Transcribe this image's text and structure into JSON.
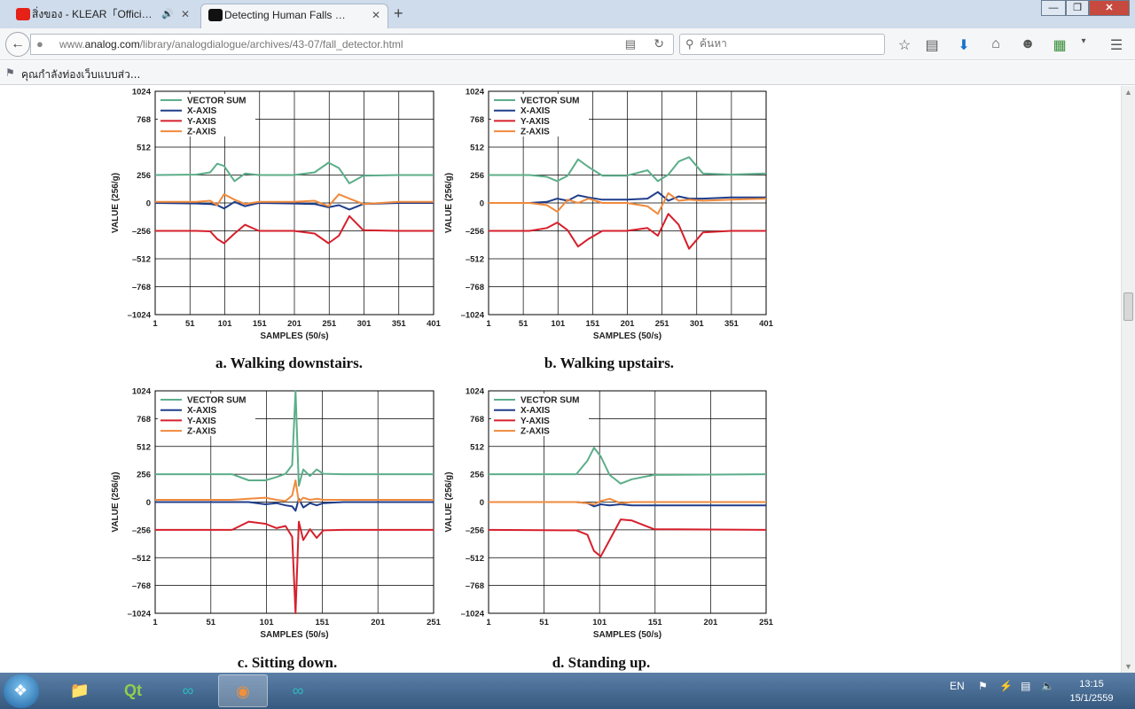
{
  "browser": {
    "tabs": [
      {
        "label": "สิ่งของ - KLEAR「Official...",
        "active": false,
        "favicon": "youtube-icon"
      },
      {
        "label": "Detecting Human Falls wit...",
        "active": true,
        "favicon": "play-icon"
      }
    ],
    "url_domain": "www.analog.com",
    "url_path": "/library/analogdialogue/archives/43-07/fall_detector.html",
    "url_prefix": "www.",
    "url_host": "analog.com",
    "search_placeholder": "ค้นหา",
    "bookmark_label": "คุณกำลังท่องเว็บแบบส่ว..."
  },
  "figure_common": {
    "legend": [
      "VECTOR SUM",
      "X-AXIS",
      "Y-AXIS",
      "Z-AXIS"
    ],
    "xlabel": "SAMPLES (50/s)",
    "ylabel": "VALUE (256/g)",
    "yticks": [
      "1024",
      "768",
      "512",
      "256",
      "0",
      "–256",
      "–512",
      "–768",
      "–1024"
    ],
    "colors": {
      "vector_sum": "#5cae8a",
      "x_axis": "#1f3d8a",
      "y_axis": "#d6202c",
      "z_axis": "#f08a3c"
    }
  },
  "chart_data": [
    {
      "type": "line",
      "caption": "a. Walking downstairs.",
      "xlabel": "SAMPLES (50/s)",
      "ylabel": "VALUE (256/g)",
      "xticks": [
        "1",
        "51",
        "101",
        "151",
        "201",
        "251",
        "301",
        "351",
        "401"
      ],
      "xlim": [
        1,
        401
      ],
      "ylim": [
        -1024,
        1024
      ],
      "grid": true,
      "legend_position": "top-left",
      "series": [
        {
          "name": "VECTOR SUM",
          "x": [
            1,
            60,
            80,
            90,
            100,
            115,
            130,
            150,
            200,
            230,
            250,
            265,
            280,
            300,
            350,
            401
          ],
          "y": [
            256,
            260,
            280,
            360,
            340,
            200,
            270,
            256,
            256,
            280,
            370,
            320,
            180,
            250,
            256,
            256
          ]
        },
        {
          "name": "X-AXIS",
          "x": [
            1,
            60,
            80,
            90,
            100,
            115,
            130,
            150,
            200,
            230,
            250,
            265,
            280,
            300,
            350,
            401
          ],
          "y": [
            0,
            -5,
            -10,
            -20,
            -50,
            10,
            -30,
            0,
            -5,
            -10,
            -40,
            -20,
            -60,
            -10,
            0,
            0
          ]
        },
        {
          "name": "Y-AXIS",
          "x": [
            1,
            60,
            80,
            90,
            100,
            115,
            130,
            150,
            200,
            230,
            250,
            265,
            280,
            300,
            350,
            401
          ],
          "y": [
            -256,
            -256,
            -260,
            -330,
            -370,
            -280,
            -200,
            -256,
            -256,
            -280,
            -370,
            -300,
            -120,
            -250,
            -256,
            -256
          ]
        },
        {
          "name": "Z-AXIS",
          "x": [
            1,
            60,
            80,
            90,
            100,
            115,
            130,
            150,
            200,
            230,
            250,
            265,
            280,
            300,
            350,
            401
          ],
          "y": [
            10,
            10,
            20,
            -20,
            80,
            30,
            -10,
            10,
            10,
            20,
            -30,
            80,
            40,
            -10,
            10,
            10
          ]
        }
      ]
    },
    {
      "type": "line",
      "caption": "b. Walking upstairs.",
      "xlabel": "SAMPLES (50/s)",
      "ylabel": "VALUE (256/g)",
      "xticks": [
        "1",
        "51",
        "101",
        "151",
        "201",
        "251",
        "301",
        "351",
        "401"
      ],
      "xlim": [
        1,
        401
      ],
      "ylim": [
        -1024,
        1024
      ],
      "grid": true,
      "legend_position": "top-left",
      "series": [
        {
          "name": "VECTOR SUM",
          "x": [
            1,
            60,
            85,
            100,
            115,
            130,
            145,
            165,
            200,
            230,
            245,
            260,
            275,
            290,
            310,
            350,
            401
          ],
          "y": [
            256,
            256,
            240,
            200,
            250,
            400,
            330,
            250,
            250,
            300,
            200,
            260,
            380,
            420,
            270,
            260,
            270
          ]
        },
        {
          "name": "X-AXIS",
          "x": [
            1,
            60,
            85,
            100,
            115,
            130,
            145,
            165,
            200,
            230,
            245,
            260,
            275,
            290,
            310,
            350,
            401
          ],
          "y": [
            0,
            0,
            10,
            40,
            20,
            70,
            50,
            30,
            30,
            40,
            100,
            20,
            60,
            40,
            40,
            50,
            50
          ]
        },
        {
          "name": "Y-AXIS",
          "x": [
            1,
            60,
            85,
            100,
            115,
            130,
            145,
            165,
            200,
            230,
            245,
            260,
            275,
            290,
            310,
            350,
            401
          ],
          "y": [
            -256,
            -256,
            -230,
            -180,
            -250,
            -400,
            -330,
            -256,
            -256,
            -230,
            -300,
            -100,
            -200,
            -420,
            -270,
            -256,
            -256
          ]
        },
        {
          "name": "Z-AXIS",
          "x": [
            1,
            60,
            85,
            100,
            115,
            130,
            145,
            165,
            200,
            230,
            245,
            260,
            275,
            290,
            310,
            350,
            401
          ],
          "y": [
            0,
            0,
            -20,
            -80,
            30,
            0,
            40,
            0,
            0,
            -30,
            -100,
            90,
            20,
            30,
            20,
            30,
            40
          ]
        }
      ]
    },
    {
      "type": "line",
      "caption": "c. Sitting down.",
      "xlabel": "SAMPLES (50/s)",
      "ylabel": "VALUE (256/g)",
      "xticks": [
        "1",
        "51",
        "101",
        "151",
        "201",
        "251"
      ],
      "xlim": [
        1,
        251
      ],
      "ylim": [
        -1024,
        1024
      ],
      "grid": true,
      "legend_position": "top-left",
      "series": [
        {
          "name": "VECTOR SUM",
          "x": [
            1,
            70,
            85,
            100,
            110,
            118,
            124,
            127,
            130,
            134,
            140,
            146,
            152,
            170,
            251
          ],
          "y": [
            256,
            256,
            200,
            200,
            230,
            260,
            340,
            1024,
            150,
            300,
            240,
            300,
            260,
            256,
            256
          ]
        },
        {
          "name": "X-AXIS",
          "x": [
            1,
            70,
            85,
            100,
            110,
            118,
            124,
            127,
            130,
            134,
            140,
            146,
            152,
            170,
            251
          ],
          "y": [
            0,
            0,
            0,
            -20,
            -10,
            -30,
            -40,
            -80,
            30,
            -50,
            -10,
            -30,
            -10,
            0,
            0
          ]
        },
        {
          "name": "Y-AXIS",
          "x": [
            1,
            70,
            85,
            100,
            110,
            118,
            124,
            127,
            130,
            134,
            140,
            146,
            152,
            170,
            251
          ],
          "y": [
            -256,
            -256,
            -180,
            -200,
            -240,
            -220,
            -320,
            -1024,
            -180,
            -350,
            -250,
            -330,
            -260,
            -256,
            -256
          ]
        },
        {
          "name": "Z-AXIS",
          "x": [
            1,
            70,
            85,
            100,
            110,
            118,
            124,
            127,
            130,
            134,
            140,
            146,
            152,
            170,
            251
          ],
          "y": [
            20,
            20,
            30,
            40,
            20,
            10,
            60,
            200,
            0,
            40,
            20,
            30,
            20,
            20,
            20
          ]
        }
      ]
    },
    {
      "type": "line",
      "caption": "d. Standing up.",
      "xlabel": "SAMPLES (50/s)",
      "ylabel": "VALUE (256/g)",
      "xticks": [
        "1",
        "51",
        "101",
        "151",
        "201",
        "251"
      ],
      "xlim": [
        1,
        251
      ],
      "ylim": [
        -1024,
        1024
      ],
      "grid": true,
      "legend_position": "top-left",
      "series": [
        {
          "name": "VECTOR SUM",
          "x": [
            1,
            80,
            90,
            96,
            102,
            110,
            120,
            130,
            150,
            251
          ],
          "y": [
            256,
            256,
            380,
            500,
            420,
            250,
            170,
            210,
            250,
            256
          ]
        },
        {
          "name": "X-AXIS",
          "x": [
            1,
            80,
            90,
            96,
            102,
            110,
            120,
            130,
            150,
            251
          ],
          "y": [
            0,
            0,
            -10,
            -40,
            -20,
            -30,
            -20,
            -30,
            -30,
            -30
          ]
        },
        {
          "name": "Y-AXIS",
          "x": [
            1,
            80,
            90,
            96,
            102,
            110,
            120,
            130,
            150,
            251
          ],
          "y": [
            -256,
            -260,
            -300,
            -450,
            -500,
            -350,
            -160,
            -170,
            -250,
            -256
          ]
        },
        {
          "name": "Z-AXIS",
          "x": [
            1,
            80,
            90,
            96,
            102,
            110,
            120,
            130,
            150,
            251
          ],
          "y": [
            0,
            0,
            -10,
            -20,
            10,
            30,
            -10,
            0,
            0,
            0
          ]
        }
      ]
    }
  ],
  "taskbar": {
    "language": "EN",
    "time": "13:15",
    "date": "15/1/2559",
    "apps": [
      "explorer-icon",
      "qt-creator-icon",
      "arduino-icon",
      "firefox-icon",
      "arduino-icon"
    ]
  }
}
